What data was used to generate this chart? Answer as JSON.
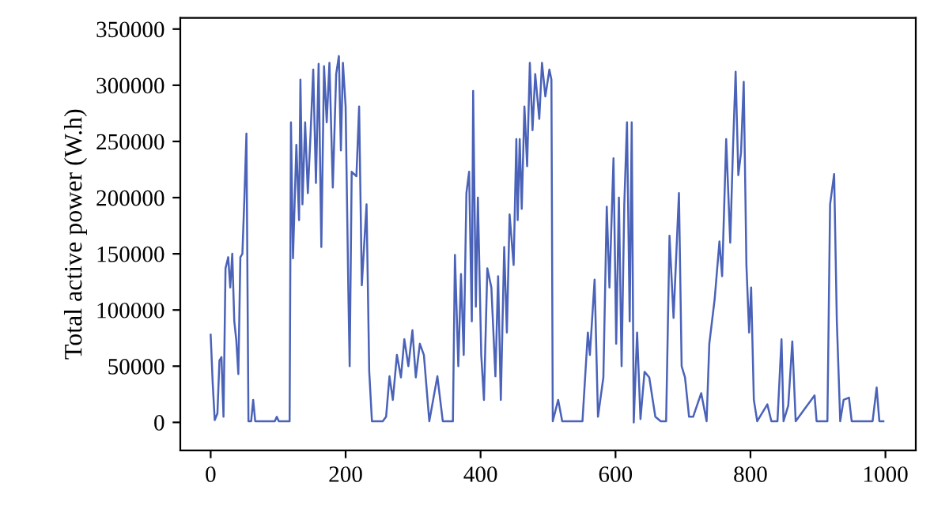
{
  "chart_data": {
    "type": "line",
    "ylabel": "Total active power (W.h)",
    "xlim": [
      -45,
      1045
    ],
    "ylim": [
      -25000,
      360000
    ],
    "xticks": [
      0,
      200,
      400,
      600,
      800,
      1000
    ],
    "yticks": [
      0,
      50000,
      100000,
      150000,
      200000,
      250000,
      300000,
      350000
    ],
    "grid": false,
    "legend": false,
    "marker": "none",
    "line_style": "solid",
    "series": [
      {
        "color": "#4a62b8",
        "x": [
          0,
          3,
          6,
          10,
          13,
          16,
          19,
          22,
          26,
          29,
          32,
          35,
          38,
          41,
          44,
          47,
          50,
          53,
          56,
          60,
          63,
          66,
          95,
          98,
          101,
          117,
          119,
          122,
          127,
          131,
          133,
          136,
          140,
          144,
          148,
          152,
          156,
          160,
          164,
          168,
          172,
          176,
          181,
          186,
          190,
          193,
          196,
          200,
          204,
          206,
          209,
          216,
          220,
          224,
          231,
          235,
          239,
          255,
          260,
          265,
          270,
          276,
          282,
          287,
          293,
          299,
          304,
          310,
          316,
          324,
          336,
          344,
          359,
          362,
          367,
          371,
          375,
          379,
          383,
          387,
          389,
          393,
          396,
          401,
          405,
          410,
          416,
          422,
          426,
          430,
          435,
          439,
          443,
          449,
          453,
          455,
          458,
          461,
          465,
          469,
          473,
          477,
          481,
          487,
          491,
          496,
          502,
          505,
          507,
          515,
          521,
          551,
          559,
          562,
          569,
          574,
          582,
          587,
          591,
          597,
          601,
          605,
          609,
          613,
          617,
          621,
          624,
          627,
          632,
          637,
          643,
          650,
          659,
          667,
          675,
          680,
          686,
          694,
          698,
          703,
          709,
          715,
          727,
          735,
          739,
          747,
          754,
          758,
          764,
          770,
          774,
          778,
          782,
          786,
          790,
          794,
          798,
          801,
          805,
          810,
          825,
          831,
          840,
          846,
          849,
          856,
          862,
          867,
          895,
          898,
          914,
          918,
          924,
          928,
          933,
          938,
          946,
          950,
          981,
          987,
          991,
          997
        ],
        "values": [
          78000,
          35000,
          2000,
          8000,
          55000,
          58000,
          5000,
          137000,
          147000,
          120000,
          150000,
          90000,
          73000,
          43000,
          147000,
          150000,
          200000,
          257000,
          1000,
          1000,
          20000,
          1000,
          1000,
          5000,
          1000,
          1000,
          267000,
          146000,
          247000,
          180000,
          305000,
          194000,
          267000,
          204000,
          256000,
          314000,
          213000,
          319000,
          156000,
          317000,
          267000,
          320000,
          209000,
          310000,
          326000,
          242000,
          320000,
          281000,
          118000,
          50000,
          223000,
          219000,
          281000,
          122000,
          194000,
          45000,
          1000,
          1000,
          5000,
          41000,
          20000,
          60000,
          40000,
          74000,
          50000,
          82000,
          40000,
          70000,
          60000,
          1000,
          41000,
          1000,
          1000,
          149000,
          50000,
          132000,
          60000,
          204000,
          223000,
          90000,
          295000,
          103000,
          200000,
          60000,
          20000,
          137000,
          120000,
          41000,
          130000,
          20000,
          156000,
          80000,
          185000,
          140000,
          252000,
          180000,
          252000,
          190000,
          281000,
          228000,
          320000,
          260000,
          310000,
          270000,
          320000,
          290000,
          314000,
          305000,
          1000,
          20000,
          1000,
          1000,
          80000,
          60000,
          127000,
          5000,
          40000,
          192000,
          120000,
          235000,
          70000,
          200000,
          50000,
          194000,
          267000,
          90000,
          267000,
          0,
          80000,
          3000,
          45000,
          40000,
          5000,
          1000,
          1000,
          166000,
          93000,
          204000,
          50000,
          40000,
          5000,
          5000,
          26000,
          1000,
          70000,
          110000,
          161000,
          130000,
          252000,
          160000,
          242000,
          312000,
          220000,
          240000,
          303000,
          140000,
          80000,
          120000,
          20000,
          1000,
          16000,
          1000,
          1000,
          74000,
          1000,
          15000,
          72000,
          1000,
          24000,
          1000,
          1000,
          194000,
          221000,
          90000,
          1000,
          20000,
          22000,
          1000,
          1000,
          31000,
          1000,
          1000
        ]
      }
    ]
  }
}
